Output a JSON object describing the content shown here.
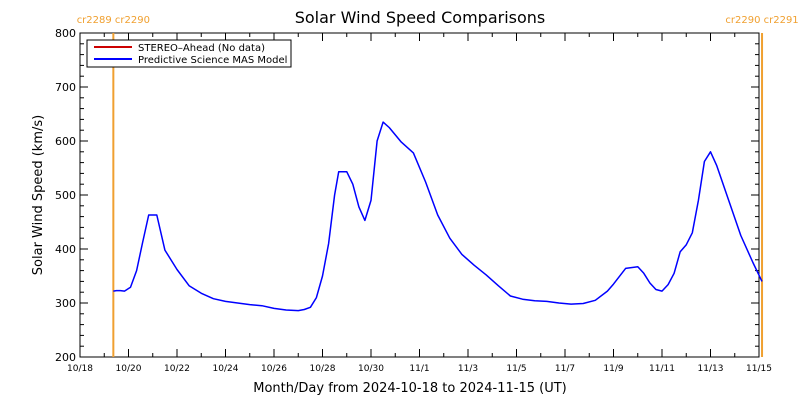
{
  "chart_data": {
    "type": "line",
    "title": "Solar Wind Speed Comparisons",
    "xlabel": "Month/Day from 2024-10-18 to 2024-11-15 (UT)",
    "ylabel": "Solar Wind Speed (km/s)",
    "ylim": [
      200,
      800
    ],
    "yticks": [
      "200",
      "300",
      "400",
      "500",
      "600",
      "700",
      "800"
    ],
    "xlim": [
      "2024-10-18",
      "2024-11-15"
    ],
    "xticks": [
      {
        "date": "2024-10-18",
        "label": "10/18"
      },
      {
        "date": "2024-10-20",
        "label": "10/20"
      },
      {
        "date": "2024-10-22",
        "label": "10/22"
      },
      {
        "date": "2024-10-24",
        "label": "10/24"
      },
      {
        "date": "2024-10-26",
        "label": "10/26"
      },
      {
        "date": "2024-10-28",
        "label": "10/28"
      },
      {
        "date": "2024-10-30",
        "label": "10/30"
      },
      {
        "date": "2024-11-01",
        "label": "11/1"
      },
      {
        "date": "2024-11-03",
        "label": "11/3"
      },
      {
        "date": "2024-11-05",
        "label": "11/5"
      },
      {
        "date": "2024-11-07",
        "label": "11/7"
      },
      {
        "date": "2024-11-09",
        "label": "11/9"
      },
      {
        "date": "2024-11-11",
        "label": "11/11"
      },
      {
        "date": "2024-11-13",
        "label": "11/13"
      },
      {
        "date": "2024-11-15",
        "label": "11/15"
      }
    ],
    "legend_position": "top-left",
    "series": [
      {
        "name": "STEREO–Ahead (No data)",
        "color": "#cc0000",
        "values": []
      },
      {
        "name": "Predictive Science MAS Model",
        "color": "#0000ff",
        "x": [
          "2024-10-19T09:00",
          "2024-10-19T12:00",
          "2024-10-19T16:00",
          "2024-10-19T20:00",
          "2024-10-20T02:00",
          "2024-10-20T08:00",
          "2024-10-20T14:00",
          "2024-10-20T20:00",
          "2024-10-21T04:00",
          "2024-10-21T12:00",
          "2024-10-22T00:00",
          "2024-10-22T12:00",
          "2024-10-23T00:00",
          "2024-10-23T12:00",
          "2024-10-24T00:00",
          "2024-10-24T12:00",
          "2024-10-25T00:00",
          "2024-10-25T12:00",
          "2024-10-26T00:00",
          "2024-10-26T12:00",
          "2024-10-27T00:00",
          "2024-10-27T06:00",
          "2024-10-27T12:00",
          "2024-10-27T18:00",
          "2024-10-28T00:00",
          "2024-10-28T06:00",
          "2024-10-28T12:00",
          "2024-10-28T16:00",
          "2024-10-29T00:00",
          "2024-10-29T06:00",
          "2024-10-29T12:00",
          "2024-10-29T18:00",
          "2024-10-30T00:00",
          "2024-10-30T06:00",
          "2024-10-30T12:00",
          "2024-10-30T18:00",
          "2024-10-31T06:00",
          "2024-10-31T18:00",
          "2024-11-01T06:00",
          "2024-11-01T18:00",
          "2024-11-02T06:00",
          "2024-11-02T18:00",
          "2024-11-03T06:00",
          "2024-11-03T18:00",
          "2024-11-04T06:00",
          "2024-11-04T18:00",
          "2024-11-05T06:00",
          "2024-11-05T18:00",
          "2024-11-06T06:00",
          "2024-11-06T18:00",
          "2024-11-07T06:00",
          "2024-11-07T18:00",
          "2024-11-08T06:00",
          "2024-11-08T18:00",
          "2024-11-09T00:00",
          "2024-11-09T12:00",
          "2024-11-10T00:00",
          "2024-11-10T06:00",
          "2024-11-10T12:00",
          "2024-11-10T18:00",
          "2024-11-11T00:00",
          "2024-11-11T06:00",
          "2024-11-11T12:00",
          "2024-11-11T18:00",
          "2024-11-12T00:00",
          "2024-11-12T06:00",
          "2024-11-12T12:00",
          "2024-11-12T18:00",
          "2024-11-13T00:00",
          "2024-11-13T06:00",
          "2024-11-13T18:00",
          "2024-11-14T06:00",
          "2024-11-14T18:00",
          "2024-11-15T03:00"
        ],
        "values": [
          322,
          323,
          323,
          322,
          329,
          360,
          412,
          463,
          463,
          398,
          362,
          332,
          318,
          308,
          303,
          300,
          297,
          295,
          290,
          287,
          286,
          288,
          292,
          310,
          350,
          410,
          500,
          543,
          543,
          520,
          478,
          453,
          490,
          600,
          635,
          625,
          598,
          578,
          524,
          463,
          420,
          390,
          370,
          352,
          332,
          313,
          307,
          304,
          303,
          300,
          298,
          299,
          305,
          322,
          335,
          364,
          367,
          355,
          337,
          325,
          322,
          334,
          355,
          395,
          408,
          430,
          490,
          562,
          580,
          555,
          490,
          425,
          375,
          340
        ]
      }
    ],
    "annotations": [
      {
        "label": "cr2289 cr2290",
        "date": "2024-10-19T09:00",
        "color": "#f0a030"
      },
      {
        "label": "cr2290 cr2291",
        "date": "2024-11-15T03:00",
        "color": "#f0a030"
      }
    ]
  }
}
